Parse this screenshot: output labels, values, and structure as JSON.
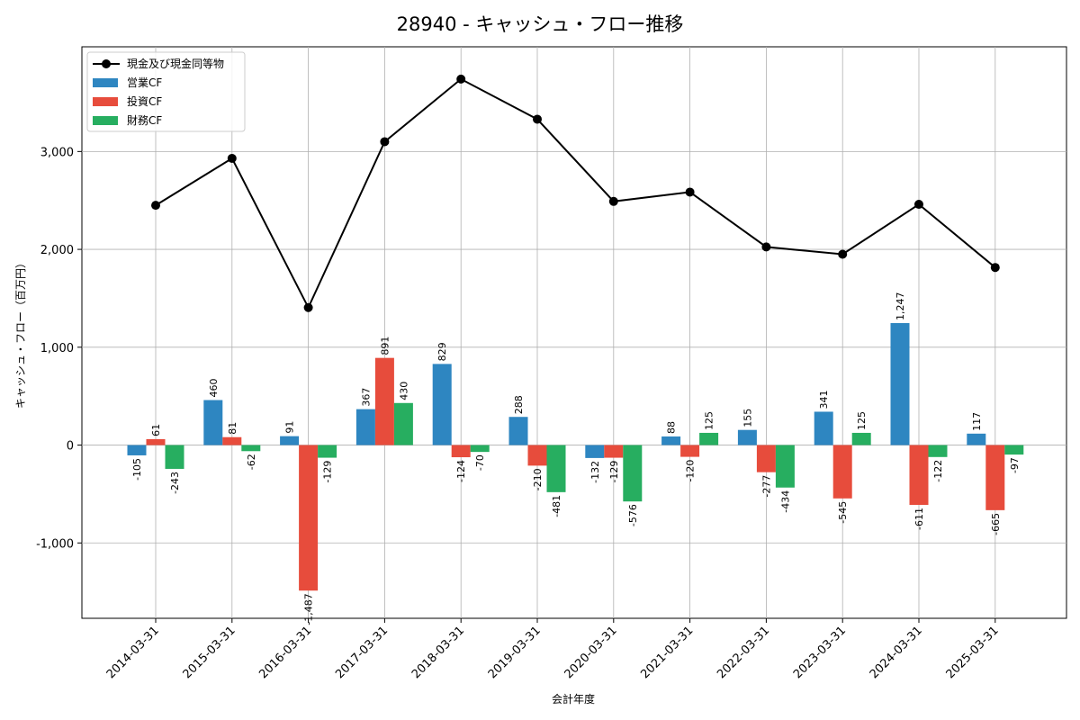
{
  "chart_data": {
    "type": "bar",
    "title": "28940 - キャッシュ・フロー推移",
    "xlabel": "会計年度",
    "ylabel": "キャッシュ・フロー（百万円）",
    "ylim": [
      -1770,
      4070
    ],
    "yticks": [
      -1000,
      0,
      1000,
      2000,
      3000
    ],
    "ytick_labels": [
      "-1,000",
      "0",
      "1,000",
      "2,000",
      "3,000"
    ],
    "grid": true,
    "legend_position": "top-left",
    "categories": [
      "2014-03-31",
      "2015-03-31",
      "2016-03-31",
      "2017-03-31",
      "2018-03-31",
      "2019-03-31",
      "2020-03-31",
      "2021-03-31",
      "2022-03-31",
      "2023-03-31",
      "2024-03-31",
      "2025-03-31"
    ],
    "series": [
      {
        "name": "営業CF",
        "kind": "bar",
        "color": "#2e86c1",
        "values": [
          -105,
          460,
          91,
          367,
          829,
          288,
          -132,
          88,
          155,
          341,
          1247,
          117
        ],
        "labels": [
          "-105",
          "460",
          "91",
          "367",
          "829",
          "288",
          "-132",
          "88",
          "155",
          "341",
          "1,247",
          "117"
        ]
      },
      {
        "name": "投資CF",
        "kind": "bar",
        "color": "#e74c3c",
        "values": [
          61,
          81,
          -1487,
          891,
          -124,
          -210,
          -129,
          -120,
          -277,
          -545,
          -611,
          -665
        ],
        "labels": [
          "61",
          "81",
          "-1,487",
          "891",
          "-124",
          "-210",
          "-129",
          "-120",
          "-277",
          "-545",
          "-611",
          "-665"
        ]
      },
      {
        "name": "財務CF",
        "kind": "bar",
        "color": "#27ae60",
        "values": [
          -243,
          -62,
          -129,
          430,
          -70,
          -481,
          -576,
          125,
          -434,
          125,
          -122,
          -97
        ],
        "labels": [
          "-243",
          "-62",
          "-129",
          "430",
          "-70",
          "-481",
          "-576",
          "125",
          "-434",
          "125",
          "-122",
          "-97"
        ]
      },
      {
        "name": "現金及び現金同等物",
        "kind": "line",
        "color": "#000000",
        "values": [
          2450,
          2930,
          1405,
          3100,
          3740,
          3330,
          2490,
          2585,
          2025,
          1950,
          2460,
          1815
        ]
      }
    ]
  }
}
